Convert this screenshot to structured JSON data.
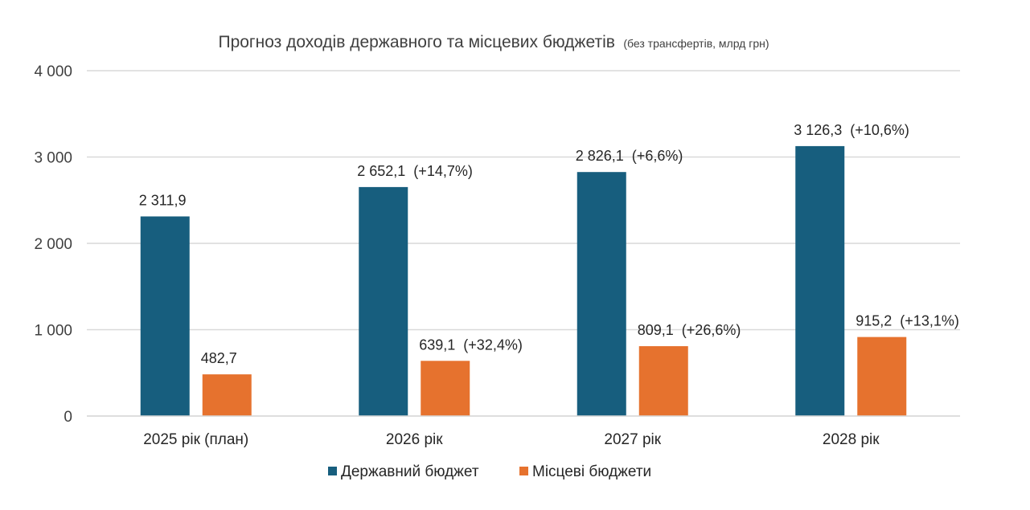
{
  "chart_data": {
    "type": "bar",
    "title": "Прогноз доходів державного та місцевих бюджетів",
    "subtitle": "(без трансфертів, млрд грн)",
    "categories": [
      "2025 рік (план)",
      "2026 рік",
      "2027 рік",
      "2028 рік"
    ],
    "series": [
      {
        "name": "Державний бюджет",
        "color": "#175E7E",
        "values": [
          2311.9,
          2652.1,
          2826.1,
          3126.3
        ],
        "labels": [
          "2 311,9",
          "2 652,1  (+14,7%)",
          "2 826,1  (+6,6%)",
          "3 126,3  (+10,6%)"
        ]
      },
      {
        "name": "Місцеві бюджети",
        "color": "#E6722E",
        "values": [
          482.7,
          639.1,
          809.1,
          915.2
        ],
        "labels": [
          "482,7",
          "639,1  (+32,4%)",
          "809,1  (+26,6%)",
          "915,2  (+13,1%)"
        ]
      }
    ],
    "ylim": [
      0,
      4000
    ],
    "yticks": [
      0,
      1000,
      2000,
      3000,
      4000
    ],
    "ytick_labels": [
      "0",
      "1 000",
      "2 000",
      "3 000",
      "4 000"
    ],
    "grid": true,
    "gridline_color": "#D9D9D9",
    "legend_position": "bottom"
  }
}
